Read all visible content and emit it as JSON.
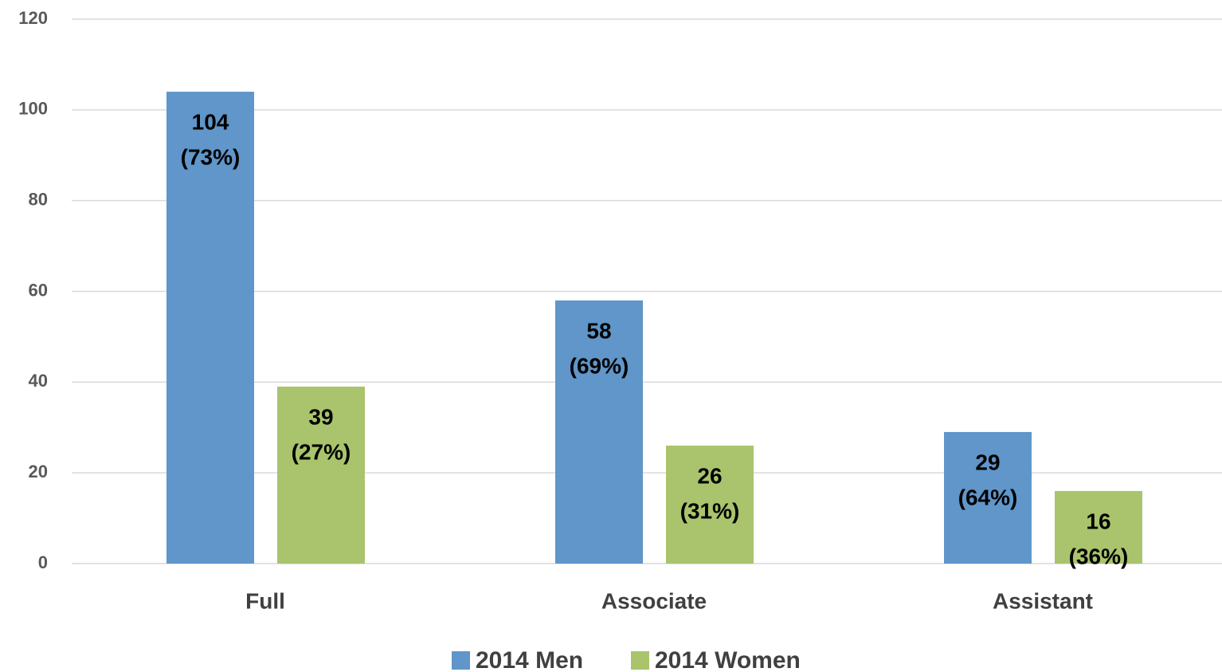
{
  "chart_data": {
    "type": "bar",
    "categories": [
      "Full",
      "Associate",
      "Assistant"
    ],
    "series": [
      {
        "name": "2014 Men",
        "color": "#6096c9",
        "values": [
          104,
          58,
          29
        ],
        "value_labels": [
          [
            "104",
            "(73%)"
          ],
          [
            "58",
            "(69%)"
          ],
          [
            "29",
            "(64%)"
          ]
        ]
      },
      {
        "name": "2014 Women",
        "color": "#a9c46c",
        "values": [
          39,
          26,
          16
        ],
        "value_labels": [
          [
            "39",
            "(27%)"
          ],
          [
            "26",
            "(31%)"
          ],
          [
            "16",
            "(36%)"
          ]
        ]
      }
    ],
    "ylim": [
      0,
      120
    ],
    "yticks": [
      0,
      20,
      40,
      60,
      80,
      100,
      120
    ],
    "grid": true,
    "legend": "bottom"
  }
}
